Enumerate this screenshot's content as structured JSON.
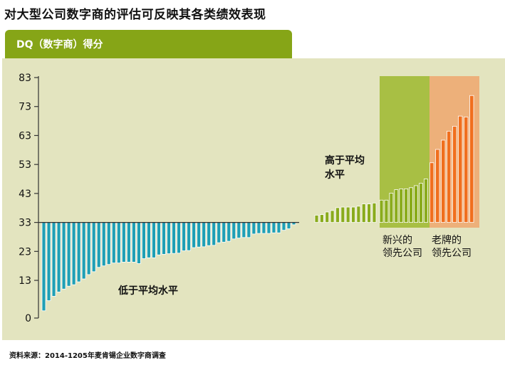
{
  "title": "对大型公司数字商的评估可反映其各类绩效表现",
  "header": {
    "label": "DQ（数字商）得分"
  },
  "source": "资料来源：2014-1205年麦肯锡企业数字商调查",
  "colors": {
    "header": "#86a517",
    "panel": "#e3e4bf",
    "below": "#1f9fb4",
    "above": "#8aab1c",
    "emerging": "#8aab1c",
    "established": "#f06f1e",
    "emerging_band": "#a8bf44",
    "established_band": "#edb07a"
  },
  "annotations": {
    "below_average": "低于平均水平",
    "above_average_1": "高于平均",
    "above_average_2": "水平",
    "emerging_1": "新兴的",
    "emerging_2": "领先公司",
    "established_1": "老牌的",
    "established_2": "领先公司"
  },
  "chart_data": {
    "type": "bar",
    "baseline": 33,
    "ylim": [
      0,
      83
    ],
    "yticks": [
      0,
      13,
      23,
      33,
      43,
      53,
      63,
      73,
      83
    ],
    "groups": [
      {
        "name": "低于平均水平",
        "values": [
          2.5,
          6,
          7.5,
          9,
          10,
          11,
          11.5,
          12.5,
          13.5,
          15,
          16,
          17.5,
          18,
          18.5,
          19,
          19,
          19.3,
          19.3,
          19.3,
          18.8,
          20.5,
          20.8,
          20.8,
          21.8,
          22,
          22.2,
          22.3,
          22.4,
          23.2,
          23.3,
          24.3,
          24.5,
          24.6,
          25,
          25.1,
          26,
          26.2,
          26.5,
          27.3,
          27.6,
          27.8,
          27.8,
          29,
          29.2,
          29.2,
          29.2,
          29.4,
          29.4,
          30.3,
          30.8,
          32.2
        ]
      },
      {
        "name": "高于平均水平",
        "values": [
          35.5,
          35.7,
          36.6,
          37.1,
          38.1,
          38.3,
          38.3,
          38.3,
          38.6,
          39.4,
          39.4,
          39.7
        ]
      },
      {
        "name": "新兴的领先公司",
        "values": [
          40.7,
          40.7,
          43.1,
          44.3,
          44.6,
          44.6,
          45,
          45.7,
          46.5,
          48
        ]
      },
      {
        "name": "老牌的领先公司",
        "values": [
          53.6,
          58.2,
          61.4,
          64.5,
          66.2,
          69.7,
          69.4,
          76.8
        ]
      }
    ]
  }
}
